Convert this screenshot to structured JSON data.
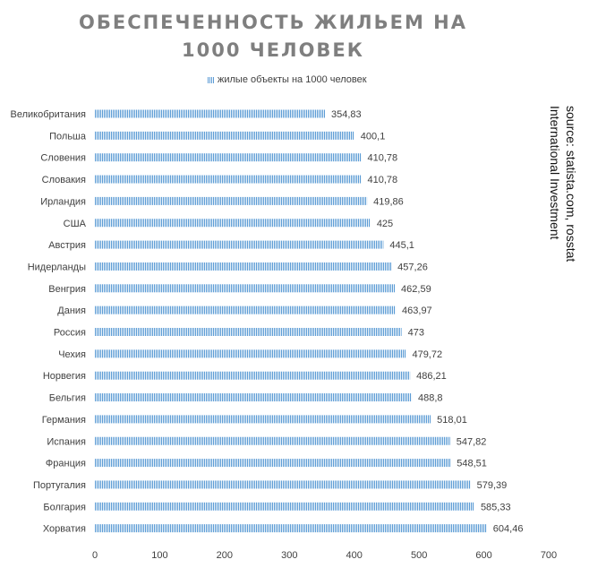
{
  "chart_data": {
    "type": "bar",
    "orientation": "horizontal",
    "title": "ОБЕСПЕЧЕННОСТЬ ЖИЛЬЕМ НА 1000 ЧЕЛОВЕК",
    "legend_position": "top",
    "categories": [
      "Великобритания",
      "Польша",
      "Словения",
      "Словакия",
      "Ирландия",
      "США",
      "Австрия",
      "Нидерланды",
      "Венгрия",
      "Дания",
      "Россия",
      "Чехия",
      "Норвегия",
      "Бельгия",
      "Германия",
      "Испания",
      "Франция",
      "Португалия",
      "Болгария",
      "Хорватия"
    ],
    "series": [
      {
        "name": "жилые объекты на 1000 человек",
        "color": "#5b9bd5",
        "values": [
          354.83,
          400.1,
          410.78,
          410.78,
          419.86,
          425,
          445.1,
          457.26,
          462.59,
          463.97,
          473,
          479.72,
          486.21,
          488.8,
          518.01,
          547.82,
          548.51,
          579.39,
          585.33,
          604.46
        ],
        "labels": [
          "354,83",
          "400,1",
          "410,78",
          "410,78",
          "419,86",
          "425",
          "445,1",
          "457,26",
          "462,59",
          "463,97",
          "473",
          "479,72",
          "486,21",
          "488,8",
          "518,01",
          "547,82",
          "548,51",
          "579,39",
          "585,33",
          "604,46"
        ]
      }
    ],
    "xlim": [
      0,
      700
    ],
    "xticks": [
      0,
      100,
      200,
      300,
      400,
      500,
      600,
      700
    ],
    "grid": false
  },
  "source_note": {
    "line1": "International Investment",
    "line2": "source: statista.com, rosstat"
  }
}
